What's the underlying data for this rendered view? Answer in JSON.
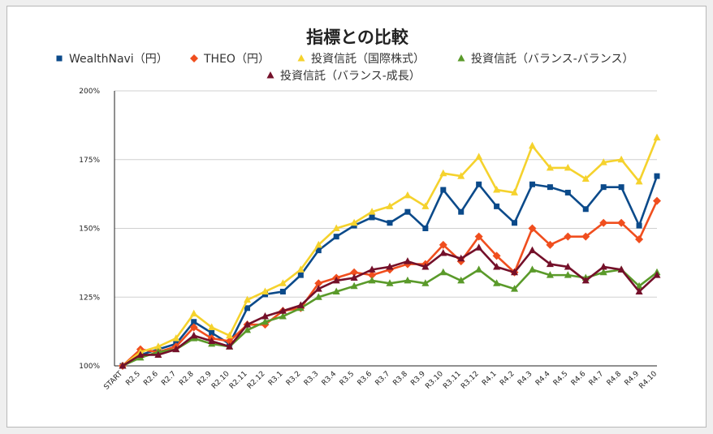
{
  "chart_data": {
    "type": "line",
    "title": "指標との比較",
    "xlabel": "",
    "ylabel": "",
    "ylim": [
      100,
      200
    ],
    "y_ticks": [
      "100%",
      "125%",
      "150%",
      "175%",
      "200%"
    ],
    "grid": true,
    "legend_position": "top",
    "categories": [
      "START",
      "R2.5",
      "R2.6",
      "R2.7",
      "R2.8",
      "R2.9",
      "R2.10",
      "R2.11",
      "R2.12",
      "R3.1",
      "R3.2",
      "R3.3",
      "R3.4",
      "R3.5",
      "R3.6",
      "R3.7",
      "R3.8",
      "R3.9",
      "R3.10",
      "R3.11",
      "R3.12",
      "R4.1",
      "R4.2",
      "R4.3",
      "R4.4",
      "R4.5",
      "R4.6",
      "R4.7",
      "R4.8",
      "R4.9",
      "R4.10"
    ],
    "series": [
      {
        "name": "WealthNavi（円）",
        "color": "#0b4a8a",
        "marker": "square",
        "values": [
          100,
          104,
          106,
          108,
          116,
          112,
          108,
          121,
          126,
          127,
          133,
          142,
          147,
          151,
          154,
          152,
          156,
          150,
          164,
          156,
          166,
          158,
          152,
          166,
          165,
          163,
          157,
          165,
          165,
          151,
          169
        ]
      },
      {
        "name": "THEO（円）",
        "color": "#f04e1e",
        "marker": "diamond",
        "values": [
          100,
          106,
          105,
          107,
          114,
          110,
          109,
          115,
          115,
          120,
          121,
          130,
          132,
          134,
          133,
          135,
          137,
          137,
          144,
          138,
          147,
          140,
          134,
          150,
          144,
          147,
          147,
          152,
          152,
          146,
          160
        ]
      },
      {
        "name": "投資信託（国際株式）",
        "color": "#f5d22d",
        "marker": "triangle",
        "values": [
          100,
          105,
          107,
          110,
          119,
          114,
          111,
          124,
          127,
          130,
          135,
          144,
          150,
          152,
          156,
          158,
          162,
          158,
          170,
          169,
          176,
          164,
          163,
          180,
          172,
          172,
          168,
          174,
          175,
          167,
          183
        ]
      },
      {
        "name": "投資信託（バランス-バランス）",
        "color": "#5a9a2a",
        "marker": "triangle",
        "values": [
          100,
          103,
          105,
          106,
          110,
          108,
          107,
          113,
          116,
          118,
          121,
          125,
          127,
          129,
          131,
          130,
          131,
          130,
          134,
          131,
          135,
          130,
          128,
          135,
          133,
          133,
          132,
          134,
          135,
          129,
          134
        ]
      },
      {
        "name": "投資信託（バランス-成長）",
        "color": "#74102a",
        "marker": "triangle",
        "values": [
          100,
          104,
          104,
          106,
          111,
          109,
          107,
          115,
          118,
          120,
          122,
          128,
          131,
          132,
          135,
          136,
          138,
          136,
          141,
          139,
          143,
          136,
          134,
          142,
          137,
          136,
          131,
          136,
          135,
          127,
          133
        ]
      }
    ]
  }
}
